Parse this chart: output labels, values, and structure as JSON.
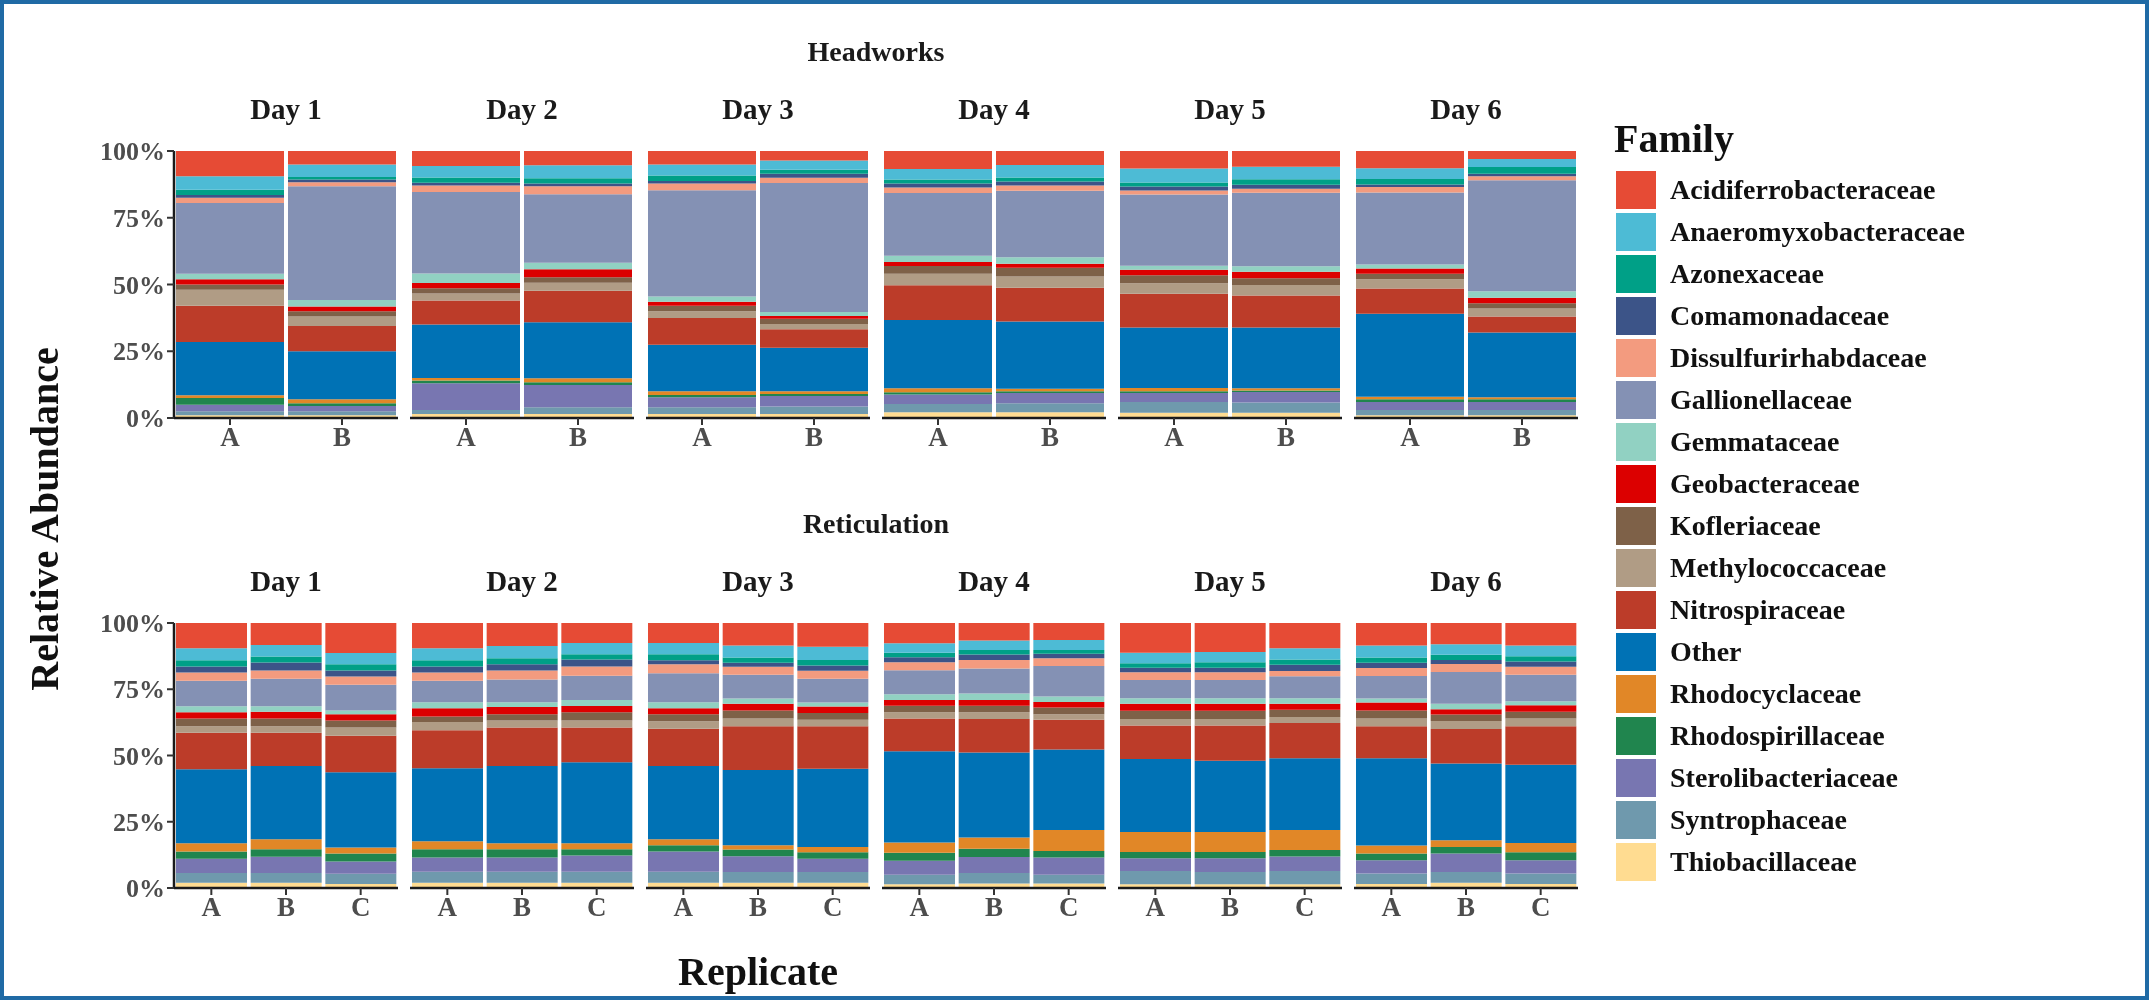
{
  "chart_data": [
    {
      "type": "bar",
      "title": "Day 1",
      "annotations": [
        "Headworks"
      ],
      "ylabel": "Relative Abundance",
      "legend": "right",
      "legend_title": "Family",
      "stacked": true,
      "categories": [
        "A",
        "B"
      ],
      "ylim": [
        0,
        100
      ],
      "yticks": [
        {
          "value": 0,
          "label": "0%"
        },
        {
          "value": 25,
          "label": "25%"
        },
        {
          "value": 50,
          "label": "50%"
        },
        {
          "value": 75,
          "label": "75%"
        },
        {
          "value": 100,
          "label": "100%"
        }
      ],
      "series": [
        {
          "name": "Thiobacillaceae",
          "color": "#ffdc91",
          "values": [
            1,
            1
          ]
        },
        {
          "name": "Syntrophaceae",
          "color": "#6f99ad",
          "values": [
            1.5,
            1.5
          ]
        },
        {
          "name": "Sterolibacteriaceae",
          "color": "#7876b1",
          "values": [
            2.5,
            2
          ]
        },
        {
          "name": "Rhodospirillaceae",
          "color": "#20854e",
          "values": [
            2.5,
            1
          ]
        },
        {
          "name": "Rhodocyclaceae",
          "color": "#e18727",
          "values": [
            1,
            1.5
          ]
        },
        {
          "name": "Other",
          "color": "#0072b5",
          "values": [
            20,
            18
          ]
        },
        {
          "name": "Nitrospiraceae",
          "color": "#bc3c29",
          "values": [
            13.5,
            9.5
          ]
        },
        {
          "name": "Methylococcaceae",
          "color": "#b09c85",
          "values": [
            6,
            3.5
          ]
        },
        {
          "name": "Kofleriaceae",
          "color": "#7e6148",
          "values": [
            2,
            2
          ]
        },
        {
          "name": "Geobacteraceae",
          "color": "#dc0000",
          "values": [
            2,
            1.8
          ]
        },
        {
          "name": "Gemmataceae",
          "color": "#91d1c2",
          "values": [
            2,
            2.4
          ]
        },
        {
          "name": "Gallionellaceae",
          "color": "#8491b4",
          "values": [
            26.5,
            42.6
          ]
        },
        {
          "name": "Dissulfurirhabdaceae",
          "color": "#f39b7f",
          "values": [
            2,
            1.5
          ]
        },
        {
          "name": "Comamonadaceae",
          "color": "#3c5488",
          "values": [
            1,
            1
          ]
        },
        {
          "name": "Azonexaceae",
          "color": "#00a087",
          "values": [
            2,
            1
          ]
        },
        {
          "name": "Anaeromyxobacteraceae",
          "color": "#4dbbd5",
          "values": [
            5,
            4.6
          ]
        },
        {
          "name": "Acidiferrobacteraceae",
          "color": "#e64b35",
          "values": [
            9.5,
            5.1
          ]
        }
      ]
    },
    {
      "type": "bar",
      "title": "Day 2",
      "stacked": true,
      "categories": [
        "A",
        "B"
      ],
      "ylim": [
        0,
        100
      ],
      "tick_labels": "x",
      "series": [
        {
          "color": "#ffdc91",
          "values": [
            1.5,
            1.5
          ]
        },
        {
          "color": "#6f99ad",
          "values": [
            1.5,
            2.5
          ]
        },
        {
          "color": "#7876b1",
          "values": [
            10,
            8.4
          ]
        },
        {
          "color": "#20854e",
          "values": [
            1,
            1
          ]
        },
        {
          "color": "#e18727",
          "values": [
            1,
            1.5
          ]
        },
        {
          "color": "#0072b5",
          "values": [
            20,
            21
          ]
        },
        {
          "color": "#bc3c29",
          "values": [
            9,
            11.8
          ]
        },
        {
          "color": "#b09c85",
          "values": [
            2.6,
            3
          ]
        },
        {
          "color": "#7e6148",
          "values": [
            2,
            2
          ]
        },
        {
          "color": "#dc0000",
          "values": [
            2,
            3
          ]
        },
        {
          "color": "#91d1c2",
          "values": [
            3.5,
            2.4
          ]
        },
        {
          "color": "#8491b4",
          "values": [
            30.5,
            25.7
          ]
        },
        {
          "color": "#f39b7f",
          "values": [
            2.5,
            3
          ]
        },
        {
          "color": "#3c5488",
          "values": [
            1,
            1
          ]
        },
        {
          "color": "#00a087",
          "values": [
            2,
            2
          ]
        },
        {
          "color": "#4dbbd5",
          "values": [
            4.3,
            4.9
          ]
        },
        {
          "color": "#e64b35",
          "values": [
            5.6,
            5.3
          ]
        }
      ]
    },
    {
      "type": "bar",
      "title": "Day 3",
      "stacked": true,
      "categories": [
        "A",
        "B"
      ],
      "ylim": [
        0,
        100
      ],
      "tick_labels": "x",
      "series": [
        {
          "color": "#ffdc91",
          "values": [
            1.5,
            1.5
          ]
        },
        {
          "color": "#6f99ad",
          "values": [
            2.5,
            2.8
          ]
        },
        {
          "color": "#7876b1",
          "values": [
            3.8,
            3.9
          ]
        },
        {
          "color": "#20854e",
          "values": [
            0.8,
            0.8
          ]
        },
        {
          "color": "#e18727",
          "values": [
            1.4,
            1
          ]
        },
        {
          "color": "#0072b5",
          "values": [
            17.4,
            16.3
          ]
        },
        {
          "color": "#bc3c29",
          "values": [
            10.1,
            6.9
          ]
        },
        {
          "color": "#b09c85",
          "values": [
            2.5,
            2
          ]
        },
        {
          "color": "#7e6148",
          "values": [
            2,
            2
          ]
        },
        {
          "color": "#dc0000",
          "values": [
            1.5,
            1
          ]
        },
        {
          "color": "#91d1c2",
          "values": [
            2,
            1.5
          ]
        },
        {
          "color": "#8491b4",
          "values": [
            39.8,
            48.3
          ]
        },
        {
          "color": "#f39b7f",
          "values": [
            2.5,
            2
          ]
        },
        {
          "color": "#3c5488",
          "values": [
            1,
            1.5
          ]
        },
        {
          "color": "#00a087",
          "values": [
            2,
            1.5
          ]
        },
        {
          "color": "#4dbbd5",
          "values": [
            4.1,
            3.4
          ]
        },
        {
          "color": "#e64b35",
          "values": [
            5.1,
            3.6
          ]
        }
      ]
    },
    {
      "type": "bar",
      "title": "Day 4",
      "stacked": true,
      "categories": [
        "A",
        "B"
      ],
      "ylim": [
        0,
        100
      ],
      "tick_labels": "x",
      "series": [
        {
          "color": "#ffdc91",
          "values": [
            2.2,
            2.2
          ]
        },
        {
          "color": "#6f99ad",
          "values": [
            3,
            3.3
          ]
        },
        {
          "color": "#7876b1",
          "values": [
            3.6,
            3.9
          ]
        },
        {
          "color": "#20854e",
          "values": [
            0.8,
            0.6
          ]
        },
        {
          "color": "#e18727",
          "values": [
            1.5,
            1
          ]
        },
        {
          "color": "#0072b5",
          "values": [
            25.6,
            25.1
          ]
        },
        {
          "color": "#bc3c29",
          "values": [
            13,
            12.7
          ]
        },
        {
          "color": "#b09c85",
          "values": [
            4.3,
            4.2
          ]
        },
        {
          "color": "#7e6148",
          "values": [
            2.9,
            3.3
          ]
        },
        {
          "color": "#dc0000",
          "values": [
            1.5,
            1.5
          ]
        },
        {
          "color": "#91d1c2",
          "values": [
            2.4,
            2.4
          ]
        },
        {
          "color": "#8491b4",
          "values": [
            23.5,
            24.9
          ]
        },
        {
          "color": "#f39b7f",
          "values": [
            2,
            2
          ]
        },
        {
          "color": "#3c5488",
          "values": [
            1.5,
            1.5
          ]
        },
        {
          "color": "#00a087",
          "values": [
            1.5,
            1.5
          ]
        },
        {
          "color": "#4dbbd5",
          "values": [
            4,
            4.7
          ]
        },
        {
          "color": "#e64b35",
          "values": [
            6.7,
            5.2
          ]
        }
      ]
    },
    {
      "type": "bar",
      "title": "Day 5",
      "stacked": true,
      "categories": [
        "A",
        "B"
      ],
      "ylim": [
        0,
        100
      ],
      "tick_labels": "x",
      "series": [
        {
          "color": "#ffdc91",
          "values": [
            2,
            2
          ]
        },
        {
          "color": "#6f99ad",
          "values": [
            4,
            3.8
          ]
        },
        {
          "color": "#7876b1",
          "values": [
            3.4,
            3.9
          ]
        },
        {
          "color": "#20854e",
          "values": [
            0.6,
            0.6
          ]
        },
        {
          "color": "#e18727",
          "values": [
            1.2,
            0.8
          ]
        },
        {
          "color": "#0072b5",
          "values": [
            22.7,
            22.8
          ]
        },
        {
          "color": "#bc3c29",
          "values": [
            12.6,
            12
          ]
        },
        {
          "color": "#b09c85",
          "values": [
            4,
            3.9
          ]
        },
        {
          "color": "#7e6148",
          "values": [
            3,
            2.5
          ]
        },
        {
          "color": "#dc0000",
          "values": [
            2,
            2.5
          ]
        },
        {
          "color": "#91d1c2",
          "values": [
            1.5,
            2
          ]
        },
        {
          "color": "#8491b4",
          "values": [
            26.7,
            27.6
          ]
        },
        {
          "color": "#f39b7f",
          "values": [
            1.5,
            1.5
          ]
        },
        {
          "color": "#3c5488",
          "values": [
            1.5,
            1.5
          ]
        },
        {
          "color": "#00a087",
          "values": [
            1.5,
            2
          ]
        },
        {
          "color": "#4dbbd5",
          "values": [
            5.2,
            4.7
          ]
        },
        {
          "color": "#e64b35",
          "values": [
            6.6,
            5.9
          ]
        }
      ]
    },
    {
      "type": "bar",
      "title": "Day 6",
      "stacked": true,
      "categories": [
        "A",
        "B"
      ],
      "ylim": [
        0,
        100
      ],
      "tick_labels": "x",
      "series": [
        {
          "color": "#ffdc91",
          "values": [
            1,
            1
          ]
        },
        {
          "color": "#6f99ad",
          "values": [
            2,
            2
          ]
        },
        {
          "color": "#7876b1",
          "values": [
            3,
            3
          ]
        },
        {
          "color": "#20854e",
          "values": [
            1,
            1
          ]
        },
        {
          "color": "#e18727",
          "values": [
            1,
            0.8
          ]
        },
        {
          "color": "#0072b5",
          "values": [
            31,
            24.2
          ]
        },
        {
          "color": "#bc3c29",
          "values": [
            9.5,
            6
          ]
        },
        {
          "color": "#b09c85",
          "values": [
            3.5,
            3
          ]
        },
        {
          "color": "#7e6148",
          "values": [
            2,
            2
          ]
        },
        {
          "color": "#dc0000",
          "values": [
            2,
            2
          ]
        },
        {
          "color": "#91d1c2",
          "values": [
            1.5,
            2.5
          ]
        },
        {
          "color": "#8491b4",
          "values": [
            27,
            41.5
          ]
        },
        {
          "color": "#f39b7f",
          "values": [
            2,
            1.5
          ]
        },
        {
          "color": "#3c5488",
          "values": [
            1,
            1
          ]
        },
        {
          "color": "#00a087",
          "values": [
            2,
            2.5
          ]
        },
        {
          "color": "#4dbbd5",
          "values": [
            4,
            3
          ]
        },
        {
          "color": "#e64b35",
          "values": [
            6.5,
            3
          ]
        }
      ]
    },
    {
      "type": "bar",
      "title": "Day 1",
      "annotations": [
        "Reticulation"
      ],
      "stacked": true,
      "categories": [
        "A",
        "B",
        "C"
      ],
      "ylim": [
        0,
        100
      ],
      "yticks": [
        {
          "value": 0,
          "label": "0%"
        },
        {
          "value": 25,
          "label": "25%"
        },
        {
          "value": 50,
          "label": "50%"
        },
        {
          "value": 75,
          "label": "75%"
        },
        {
          "value": 100,
          "label": "100%"
        }
      ],
      "series": [
        {
          "color": "#ffdc91",
          "values": [
            2,
            2,
            1.5
          ]
        },
        {
          "color": "#6f99ad",
          "values": [
            3.7,
            3.7,
            3.9
          ]
        },
        {
          "color": "#7876b1",
          "values": [
            5.3,
            6.1,
            4.6
          ]
        },
        {
          "color": "#20854e",
          "values": [
            2.8,
            2.8,
            3
          ]
        },
        {
          "color": "#e18727",
          "values": [
            3.1,
            3.8,
            2.3
          ]
        },
        {
          "color": "#0072b5",
          "values": [
            27.9,
            27.6,
            28.4
          ]
        },
        {
          "color": "#bc3c29",
          "values": [
            13.8,
            12.6,
            13.8
          ]
        },
        {
          "color": "#b09c85",
          "values": [
            2.4,
            2.4,
            3.1
          ]
        },
        {
          "color": "#7e6148",
          "values": [
            3,
            3,
            2.6
          ]
        },
        {
          "color": "#dc0000",
          "values": [
            2.3,
            2.5,
            2.4
          ]
        },
        {
          "color": "#91d1c2",
          "values": [
            2.3,
            2.1,
            1.4
          ]
        },
        {
          "color": "#8491b4",
          "values": [
            9.6,
            10.4,
            9.7
          ]
        },
        {
          "color": "#f39b7f",
          "values": [
            3.1,
            3.1,
            3.1
          ]
        },
        {
          "color": "#3c5488",
          "values": [
            2.3,
            3,
            2.3
          ]
        },
        {
          "color": "#00a087",
          "values": [
            2.3,
            2.3,
            2.3
          ]
        },
        {
          "color": "#4dbbd5",
          "values": [
            4.6,
            4.3,
            4.3
          ]
        },
        {
          "color": "#e64b35",
          "values": [
            9.5,
            8.3,
            11.3
          ]
        }
      ]
    },
    {
      "type": "bar",
      "title": "Day 2",
      "stacked": true,
      "categories": [
        "A",
        "B",
        "C"
      ],
      "ylim": [
        0,
        100
      ],
      "tick_labels": "x",
      "series": [
        {
          "color": "#ffdc91",
          "values": [
            2,
            2,
            2
          ]
        },
        {
          "color": "#6f99ad",
          "values": [
            4.1,
            4.1,
            4.1
          ]
        },
        {
          "color": "#7876b1",
          "values": [
            5.4,
            5.4,
            6.2
          ]
        },
        {
          "color": "#20854e",
          "values": [
            3.1,
            3.1,
            2.3
          ]
        },
        {
          "color": "#e18727",
          "values": [
            3,
            2.3,
            2.3
          ]
        },
        {
          "color": "#0072b5",
          "values": [
            27.6,
            29.1,
            30.6
          ]
        },
        {
          "color": "#bc3c29",
          "values": [
            14.3,
            14.6,
            13.1
          ]
        },
        {
          "color": "#b09c85",
          "values": [
            3.1,
            2.6,
            2.6
          ]
        },
        {
          "color": "#7e6148",
          "values": [
            2.1,
            2.4,
            3.1
          ]
        },
        {
          "color": "#dc0000",
          "values": [
            3.1,
            2.7,
            2.4
          ]
        },
        {
          "color": "#91d1c2",
          "values": [
            2.3,
            1.8,
            2.2
          ]
        },
        {
          "color": "#8491b4",
          "values": [
            8.1,
            8.6,
            9.2
          ]
        },
        {
          "color": "#f39b7f",
          "values": [
            3.1,
            3.4,
            3.5
          ]
        },
        {
          "color": "#3c5488",
          "values": [
            2.3,
            2.3,
            2.6
          ]
        },
        {
          "color": "#00a087",
          "values": [
            2.3,
            2.3,
            2
          ]
        },
        {
          "color": "#4dbbd5",
          "values": [
            4.6,
            4.6,
            4.3
          ]
        },
        {
          "color": "#e64b35",
          "values": [
            9.5,
            8.7,
            7.5
          ]
        }
      ]
    },
    {
      "type": "bar",
      "title": "Day 3",
      "xlabel": "Replicate",
      "stacked": true,
      "categories": [
        "A",
        "B",
        "C"
      ],
      "ylim": [
        0,
        100
      ],
      "tick_labels": "x",
      "series": [
        {
          "color": "#ffdc91",
          "values": [
            2,
            2,
            2
          ]
        },
        {
          "color": "#6f99ad",
          "values": [
            4.1,
            4,
            4
          ]
        },
        {
          "color": "#7876b1",
          "values": [
            7.7,
            6,
            5
          ]
        },
        {
          "color": "#20854e",
          "values": [
            2.3,
            2.5,
            2.5
          ]
        },
        {
          "color": "#e18727",
          "values": [
            2.3,
            1.6,
            2
          ]
        },
        {
          "color": "#0072b5",
          "values": [
            27.6,
            28.4,
            29.5
          ]
        },
        {
          "color": "#bc3c29",
          "values": [
            14.1,
            16.5,
            16
          ]
        },
        {
          "color": "#b09c85",
          "values": [
            2.8,
            3,
            2.5
          ]
        },
        {
          "color": "#7e6148",
          "values": [
            2.7,
            3,
            2.5
          ]
        },
        {
          "color": "#dc0000",
          "values": [
            2.2,
            2.5,
            2.5
          ]
        },
        {
          "color": "#91d1c2",
          "values": [
            2.3,
            2,
            1.5
          ]
        },
        {
          "color": "#8491b4",
          "values": [
            10.9,
            9,
            9
          ]
        },
        {
          "color": "#f39b7f",
          "values": [
            3.4,
            3,
            3
          ]
        },
        {
          "color": "#3c5488",
          "values": [
            1.5,
            1.5,
            2
          ]
        },
        {
          "color": "#00a087",
          "values": [
            2.3,
            2,
            2
          ]
        },
        {
          "color": "#4dbbd5",
          "values": [
            4.3,
            4.5,
            5
          ]
        },
        {
          "color": "#e64b35",
          "values": [
            7.5,
            8.5,
            9
          ]
        }
      ]
    },
    {
      "type": "bar",
      "title": "Day 4",
      "stacked": true,
      "categories": [
        "A",
        "B",
        "C"
      ],
      "ylim": [
        0,
        100
      ],
      "tick_labels": "x",
      "series": [
        {
          "color": "#ffdc91",
          "values": [
            1.4,
            1.7,
            1.7
          ]
        },
        {
          "color": "#6f99ad",
          "values": [
            3.6,
            4,
            3.3
          ]
        },
        {
          "color": "#7876b1",
          "values": [
            5.3,
            6,
            6.5
          ]
        },
        {
          "color": "#20854e",
          "values": [
            3,
            3.1,
            2.5
          ]
        },
        {
          "color": "#e18727",
          "values": [
            3.9,
            4.3,
            7.9
          ]
        },
        {
          "color": "#0072b5",
          "values": [
            34.4,
            32,
            30.4
          ]
        },
        {
          "color": "#bc3c29",
          "values": [
            12.4,
            12.7,
            11.2
          ]
        },
        {
          "color": "#b09c85",
          "values": [
            2.3,
            2.5,
            2.1
          ]
        },
        {
          "color": "#7e6148",
          "values": [
            2.5,
            2.5,
            2.5
          ]
        },
        {
          "color": "#dc0000",
          "values": [
            2.1,
            2.1,
            2.1
          ]
        },
        {
          "color": "#91d1c2",
          "values": [
            2.2,
            2.5,
            2.1
          ]
        },
        {
          "color": "#8491b4",
          "values": [
            9.1,
            9.4,
            11.5
          ]
        },
        {
          "color": "#f39b7f",
          "values": [
            3,
            3.2,
            2.9
          ]
        },
        {
          "color": "#3c5488",
          "values": [
            1.9,
            2.1,
            1.7
          ]
        },
        {
          "color": "#00a087",
          "values": [
            1.7,
            1.7,
            1.4
          ]
        },
        {
          "color": "#4dbbd5",
          "values": [
            3.6,
            3.6,
            3.8
          ]
        },
        {
          "color": "#e64b35",
          "values": [
            7.6,
            6.6,
            6.4
          ]
        }
      ]
    },
    {
      "type": "bar",
      "title": "Day 5",
      "stacked": true,
      "categories": [
        "A",
        "B",
        "C"
      ],
      "ylim": [
        0,
        100
      ],
      "tick_labels": "x",
      "series": [
        {
          "color": "#ffdc91",
          "values": [
            1.4,
            1.4,
            1.4
          ]
        },
        {
          "color": "#6f99ad",
          "values": [
            5,
            4.6,
            5
          ]
        },
        {
          "color": "#7876b1",
          "values": [
            4.8,
            5.2,
            5.5
          ]
        },
        {
          "color": "#20854e",
          "values": [
            2.4,
            2.4,
            2.4
          ]
        },
        {
          "color": "#e18727",
          "values": [
            7.5,
            7.5,
            7.6
          ]
        },
        {
          "color": "#0072b5",
          "values": [
            27.6,
            26.9,
            27.1
          ]
        },
        {
          "color": "#bc3c29",
          "values": [
            12.6,
            13.3,
            13.3
          ]
        },
        {
          "color": "#b09c85",
          "values": [
            2.5,
            2.5,
            2.2
          ]
        },
        {
          "color": "#7e6148",
          "values": [
            3.1,
            3.1,
            2.8
          ]
        },
        {
          "color": "#dc0000",
          "values": [
            2.6,
            2.6,
            2.2
          ]
        },
        {
          "color": "#91d1c2",
          "values": [
            2.1,
            2.1,
            2.1
          ]
        },
        {
          "color": "#8491b4",
          "values": [
            6.9,
            6.9,
            8.3
          ]
        },
        {
          "color": "#f39b7f",
          "values": [
            2.9,
            2.9,
            2
          ]
        },
        {
          "color": "#3c5488",
          "values": [
            1.7,
            1.7,
            2.3
          ]
        },
        {
          "color": "#00a087",
          "values": [
            1.7,
            2.1,
            2
          ]
        },
        {
          "color": "#4dbbd5",
          "values": [
            4,
            3.9,
            4.3
          ]
        },
        {
          "color": "#e64b35",
          "values": [
            11.2,
            10.9,
            9.5
          ]
        }
      ]
    },
    {
      "type": "bar",
      "title": "Day 6",
      "stacked": true,
      "categories": [
        "A",
        "B",
        "C"
      ],
      "ylim": [
        0,
        100
      ],
      "tick_labels": "x",
      "series": [
        {
          "color": "#ffdc91",
          "values": [
            1.5,
            2,
            1.5
          ]
        },
        {
          "color": "#6f99ad",
          "values": [
            4,
            4,
            4
          ]
        },
        {
          "color": "#7876b1",
          "values": [
            5,
            7,
            5
          ]
        },
        {
          "color": "#20854e",
          "values": [
            2.5,
            2.5,
            3
          ]
        },
        {
          "color": "#e18727",
          "values": [
            3,
            2.5,
            3.5
          ]
        },
        {
          "color": "#0072b5",
          "values": [
            33,
            29,
            29.5
          ]
        },
        {
          "color": "#bc3c29",
          "values": [
            12,
            13,
            14.5
          ]
        },
        {
          "color": "#b09c85",
          "values": [
            3,
            3,
            3
          ]
        },
        {
          "color": "#7e6148",
          "values": [
            3,
            2.5,
            2.5
          ]
        },
        {
          "color": "#dc0000",
          "values": [
            3,
            2,
            2.5
          ]
        },
        {
          "color": "#91d1c2",
          "values": [
            1.5,
            2,
            1.5
          ]
        },
        {
          "color": "#8491b4",
          "values": [
            8.5,
            12,
            10
          ]
        },
        {
          "color": "#f39b7f",
          "values": [
            3,
            3,
            3
          ]
        },
        {
          "color": "#3c5488",
          "values": [
            2,
            1.5,
            2
          ]
        },
        {
          "color": "#00a087",
          "values": [
            2,
            2,
            2
          ]
        },
        {
          "color": "#4dbbd5",
          "values": [
            4.5,
            4,
            4
          ]
        },
        {
          "color": "#e64b35",
          "values": [
            8.5,
            8,
            8.5
          ]
        }
      ]
    }
  ]
}
